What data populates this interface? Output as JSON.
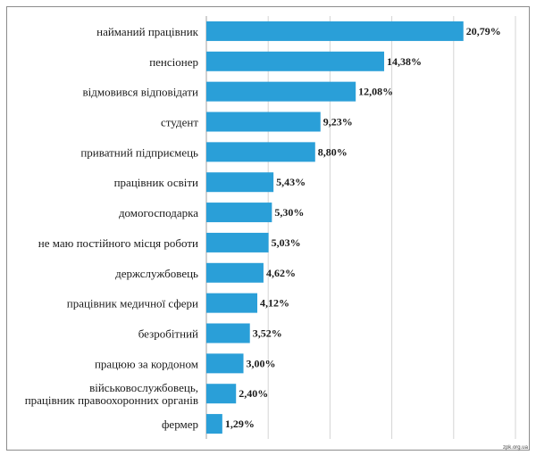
{
  "chart_data": {
    "type": "bar",
    "orientation": "horizontal",
    "title": "",
    "xlabel": "",
    "ylabel": "",
    "xlim": [
      0,
      25
    ],
    "grid": true,
    "legend": "none",
    "bar_color": "#2a9fd8",
    "categories": [
      "найманий працівник",
      "пенсіонер",
      "відмовився відповідати",
      "студент",
      "приватний підприємець",
      "працівник освіти",
      "домогосподарка",
      "не маю постійного місця роботи",
      "держслужбовець",
      "працівник медичної сфери",
      "безробітний",
      "працюю за кордоном",
      "військовослужбовець, працівник правоохоронних органів",
      "фермер"
    ],
    "values": [
      20.79,
      14.38,
      12.08,
      9.23,
      8.8,
      5.43,
      5.3,
      5.03,
      4.62,
      4.12,
      3.52,
      3.0,
      2.4,
      1.29
    ],
    "value_labels": [
      "20,79%",
      "14,38%",
      "12,08%",
      "9,23%",
      "8,80%",
      "5,43%",
      "5,30%",
      "5,03%",
      "4,62%",
      "4,12%",
      "3,52%",
      "3,00%",
      "2,40%",
      "1,29%"
    ]
  },
  "watermark": "zpk.org.ua"
}
